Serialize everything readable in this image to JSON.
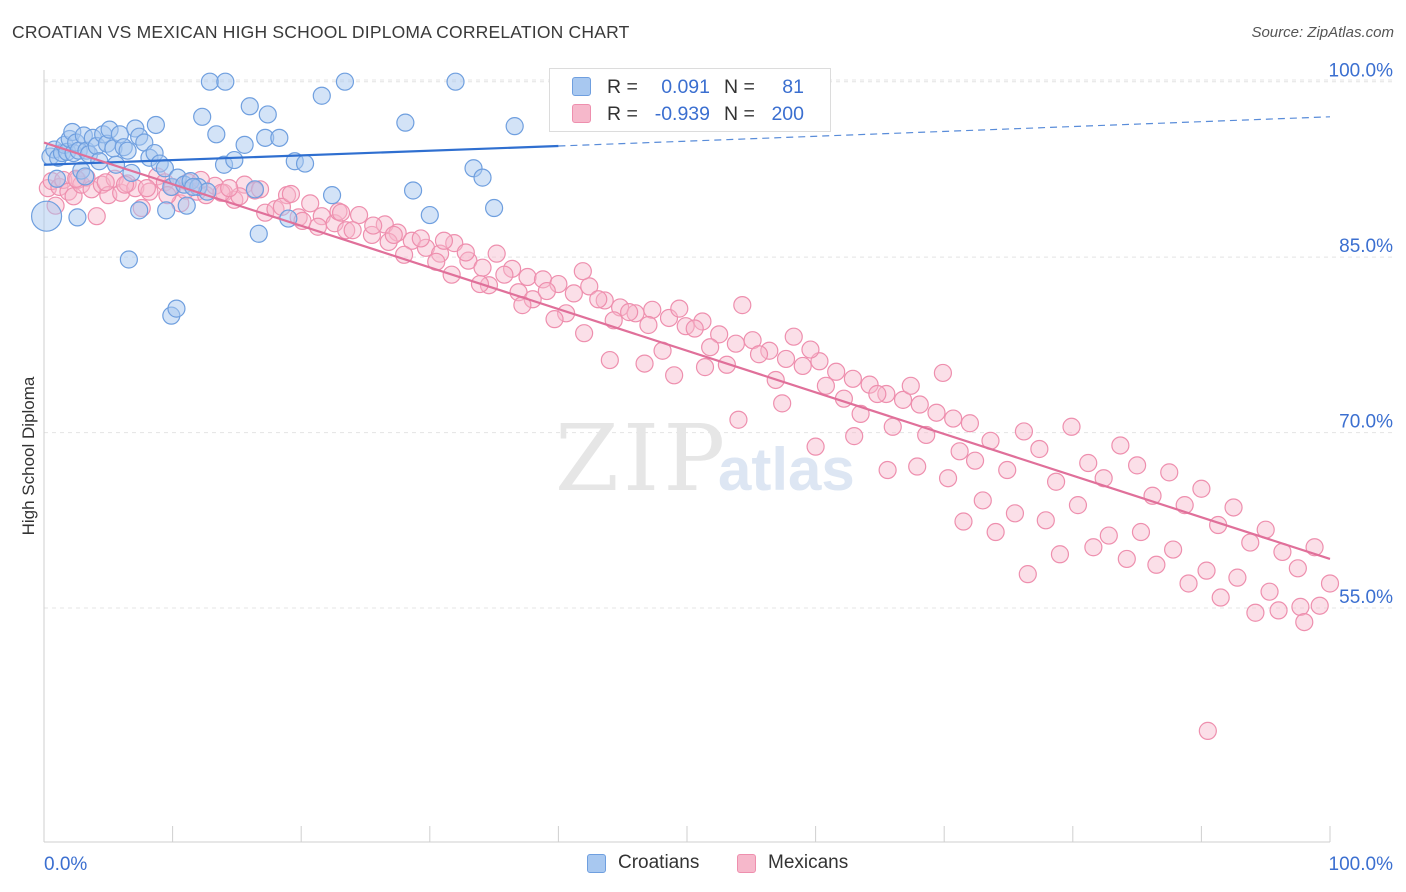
{
  "header": {
    "title": "CROATIAN VS MEXICAN HIGH SCHOOL DIPLOMA CORRELATION CHART",
    "source": "Source: ZipAtlas.com"
  },
  "watermark": {
    "zip": "ZIP",
    "atlas": "atlas"
  },
  "legend": {
    "croatians": {
      "r_label": "R =",
      "r_value": "0.091",
      "n_label": "N =",
      "n_value": "81"
    },
    "mexicans": {
      "r_label": "R =",
      "r_value": "-0.939",
      "n_label": "N =",
      "n_value": "200"
    }
  },
  "bottom_legend": {
    "croatians": "Croatians",
    "mexicans": "Mexicans"
  },
  "colors": {
    "croatians_fill": "#a8c8f0",
    "croatians_stroke": "#6f9fdf",
    "croatians_line": "#2f6fd0",
    "mexicans_fill": "#f6b8cb",
    "mexicans_stroke": "#ee8fae",
    "mexicans_line": "#e0709a",
    "axis_label": "#3b6fd0",
    "grid": "#e4e4e4"
  },
  "chart_data": {
    "type": "scatter",
    "title": "CROATIAN VS MEXICAN HIGH SCHOOL DIPLOMA CORRELATION CHART",
    "xlabel": "",
    "ylabel": "High School Diploma",
    "xlim": [
      0,
      100
    ],
    "ylim": [
      35,
      101
    ],
    "x_tick_labels": [
      "0.0%",
      "100.0%"
    ],
    "y_ticks": [
      55,
      70,
      85,
      100
    ],
    "y_tick_labels": [
      "55.0%",
      "70.0%",
      "85.0%",
      "100.0%"
    ],
    "grid": true,
    "legend_position": "top-center",
    "series": [
      {
        "name": "Croatians",
        "r": 0.091,
        "n": 81,
        "trend": {
          "x": [
            0,
            40,
            100
          ],
          "y": [
            92.9,
            94.5,
            97.0
          ],
          "solid_until": 40
        },
        "points": [
          [
            0.2,
            88.5,
            1.5
          ],
          [
            0.5,
            93.6,
            1
          ],
          [
            0.8,
            94.2,
            1
          ],
          [
            1.1,
            93.5,
            1
          ],
          [
            1.4,
            93.9,
            1
          ],
          [
            1.6,
            94.6,
            1
          ],
          [
            1.8,
            94.0,
            1
          ],
          [
            2.0,
            95.1,
            1
          ],
          [
            2.2,
            95.7,
            1
          ],
          [
            2.3,
            93.9,
            1
          ],
          [
            2.5,
            94.8,
            1
          ],
          [
            2.7,
            94.1,
            1
          ],
          [
            2.9,
            92.4,
            1
          ],
          [
            3.1,
            95.4,
            1
          ],
          [
            3.3,
            94.1,
            1
          ],
          [
            3.5,
            93.8,
            1
          ],
          [
            3.8,
            95.2,
            1
          ],
          [
            4.1,
            94.5,
            1
          ],
          [
            4.3,
            93.2,
            1
          ],
          [
            4.6,
            95.5,
            1
          ],
          [
            4.9,
            94.7,
            1
          ],
          [
            5.1,
            95.9,
            1
          ],
          [
            5.4,
            94.3,
            1
          ],
          [
            5.6,
            92.9,
            1
          ],
          [
            5.9,
            95.5,
            1
          ],
          [
            6.2,
            94.4,
            1
          ],
          [
            6.5,
            94.1,
            1
          ],
          [
            6.8,
            92.2,
            1
          ],
          [
            7.1,
            96.0,
            1
          ],
          [
            7.4,
            95.3,
            1
          ],
          [
            7.8,
            94.8,
            1
          ],
          [
            8.2,
            93.5,
            1
          ],
          [
            8.6,
            93.9,
            1
          ],
          [
            9.0,
            93.0,
            1
          ],
          [
            9.4,
            92.6,
            1
          ],
          [
            9.9,
            91.0,
            1
          ],
          [
            10.4,
            91.8,
            1
          ],
          [
            10.9,
            91.2,
            1
          ],
          [
            11.4,
            91.5,
            1
          ],
          [
            12.0,
            91.0,
            1
          ],
          [
            12.7,
            90.6,
            1
          ],
          [
            13.4,
            95.5,
            1
          ],
          [
            14.0,
            92.9,
            1
          ],
          [
            14.8,
            93.3,
            1
          ],
          [
            15.6,
            94.6,
            1
          ],
          [
            16.4,
            90.8,
            1
          ],
          [
            17.2,
            95.2,
            1
          ],
          [
            1.0,
            91.7,
            1
          ],
          [
            2.6,
            88.4,
            1
          ],
          [
            3.2,
            91.9,
            1
          ],
          [
            6.6,
            84.8,
            1
          ],
          [
            7.4,
            89.0,
            1
          ],
          [
            8.7,
            96.3,
            1
          ],
          [
            9.5,
            89.0,
            1
          ],
          [
            9.9,
            80.0,
            1
          ],
          [
            10.3,
            80.6,
            1
          ],
          [
            11.1,
            89.4,
            1
          ],
          [
            11.6,
            91.0,
            1
          ],
          [
            12.3,
            97.0,
            1
          ],
          [
            12.9,
            100.0,
            1
          ],
          [
            14.1,
            100.0,
            1
          ],
          [
            16.0,
            97.9,
            1
          ],
          [
            16.7,
            87.0,
            1
          ],
          [
            17.4,
            97.2,
            1
          ],
          [
            18.3,
            95.2,
            1
          ],
          [
            19.0,
            88.3,
            1
          ],
          [
            19.5,
            93.2,
            1
          ],
          [
            20.3,
            93.0,
            1
          ],
          [
            21.6,
            98.8,
            1
          ],
          [
            22.4,
            90.3,
            1
          ],
          [
            23.4,
            100.0,
            1
          ],
          [
            28.1,
            96.5,
            1
          ],
          [
            28.7,
            90.7,
            1
          ],
          [
            30.0,
            88.6,
            1
          ],
          [
            32.0,
            100.0,
            1
          ],
          [
            33.4,
            92.6,
            1
          ],
          [
            34.1,
            91.8,
            1
          ],
          [
            35.0,
            89.2,
            1
          ],
          [
            36.6,
            96.2,
            1
          ],
          [
            44.5,
            97.0,
            1
          ],
          [
            45.8,
            100.0,
            1
          ]
        ]
      },
      {
        "name": "Mexicans",
        "r": -0.939,
        "n": 200,
        "trend": {
          "x": [
            0,
            100
          ],
          "y": [
            94.8,
            59.2
          ]
        },
        "points": [
          [
            0.3,
            90.9
          ],
          [
            0.6,
            91.5
          ],
          [
            0.9,
            89.4
          ],
          [
            1.2,
            91.0
          ],
          [
            1.5,
            91.6
          ],
          [
            1.9,
            90.6
          ],
          [
            2.3,
            90.2
          ],
          [
            2.6,
            91.6
          ],
          [
            2.9,
            91.2
          ],
          [
            3.3,
            91.8
          ],
          [
            3.7,
            90.8
          ],
          [
            4.1,
            88.5
          ],
          [
            4.5,
            91.2
          ],
          [
            5.0,
            90.3
          ],
          [
            5.5,
            91.7
          ],
          [
            6.0,
            90.5
          ],
          [
            6.5,
            91.3
          ],
          [
            7.1,
            90.9
          ],
          [
            7.6,
            89.2
          ],
          [
            8.2,
            90.6
          ],
          [
            8.8,
            91.9
          ],
          [
            9.4,
            91.4
          ],
          [
            10.0,
            91.0
          ],
          [
            10.6,
            89.6
          ],
          [
            11.2,
            91.4
          ],
          [
            11.9,
            90.6
          ],
          [
            12.6,
            90.3
          ],
          [
            13.3,
            91.1
          ],
          [
            14.0,
            90.5
          ],
          [
            14.8,
            89.9
          ],
          [
            15.6,
            91.2
          ],
          [
            16.4,
            90.7
          ],
          [
            17.2,
            88.8
          ],
          [
            18.0,
            89.1
          ],
          [
            18.9,
            90.3
          ],
          [
            19.8,
            88.4
          ],
          [
            20.7,
            89.6
          ],
          [
            21.6,
            88.5
          ],
          [
            22.6,
            87.9
          ],
          [
            23.5,
            87.3
          ],
          [
            24.5,
            88.6
          ],
          [
            25.5,
            86.9
          ],
          [
            26.5,
            87.8
          ],
          [
            27.5,
            87.1
          ],
          [
            28.6,
            86.4
          ],
          [
            29.7,
            85.8
          ],
          [
            30.8,
            85.3
          ],
          [
            31.9,
            86.2
          ],
          [
            33.0,
            84.7
          ],
          [
            34.1,
            84.1
          ],
          [
            35.2,
            85.3
          ],
          [
            36.4,
            84.0
          ],
          [
            37.6,
            83.3
          ],
          [
            38.8,
            83.1
          ],
          [
            40.0,
            82.7
          ],
          [
            41.2,
            81.9
          ],
          [
            42.4,
            82.5
          ],
          [
            43.6,
            81.3
          ],
          [
            44.8,
            80.7
          ],
          [
            46.0,
            80.2
          ],
          [
            47.3,
            80.5
          ],
          [
            48.6,
            79.8
          ],
          [
            49.9,
            79.1
          ],
          [
            51.2,
            79.5
          ],
          [
            52.5,
            78.4
          ],
          [
            53.8,
            77.6
          ],
          [
            55.1,
            77.9
          ],
          [
            56.4,
            77.0
          ],
          [
            57.7,
            76.3
          ],
          [
            59.0,
            75.7
          ],
          [
            60.3,
            76.1
          ],
          [
            61.6,
            75.2
          ],
          [
            62.9,
            74.6
          ],
          [
            64.2,
            74.1
          ],
          [
            65.5,
            73.3
          ],
          [
            66.8,
            72.8
          ],
          [
            68.1,
            72.4
          ],
          [
            69.4,
            71.7
          ],
          [
            70.7,
            71.2
          ],
          [
            72.0,
            70.8
          ],
          [
            2.5,
            91.7
          ],
          [
            4.8,
            91.4
          ],
          [
            6.3,
            91.2
          ],
          [
            8.0,
            90.9
          ],
          [
            9.6,
            90.3
          ],
          [
            11.0,
            90.7
          ],
          [
            12.2,
            91.6
          ],
          [
            13.8,
            90.5
          ],
          [
            15.2,
            90.2
          ],
          [
            16.8,
            90.8
          ],
          [
            18.5,
            89.3
          ],
          [
            20.1,
            88.1
          ],
          [
            21.3,
            87.6
          ],
          [
            22.9,
            88.9
          ],
          [
            24.0,
            87.3
          ],
          [
            25.6,
            87.7
          ],
          [
            26.8,
            86.3
          ],
          [
            28.0,
            85.2
          ],
          [
            29.3,
            86.6
          ],
          [
            30.5,
            84.6
          ],
          [
            31.7,
            83.5
          ],
          [
            32.8,
            85.4
          ],
          [
            34.6,
            82.6
          ],
          [
            35.8,
            83.5
          ],
          [
            36.9,
            82.0
          ],
          [
            38.0,
            81.4
          ],
          [
            39.1,
            82.1
          ],
          [
            40.6,
            80.2
          ],
          [
            41.9,
            83.8
          ],
          [
            43.1,
            81.4
          ],
          [
            44.3,
            79.6
          ],
          [
            45.5,
            80.3
          ],
          [
            47.0,
            79.2
          ],
          [
            48.1,
            77.0
          ],
          [
            49.4,
            80.6
          ],
          [
            50.6,
            78.9
          ],
          [
            51.8,
            77.3
          ],
          [
            53.1,
            75.8
          ],
          [
            54.3,
            80.9
          ],
          [
            55.6,
            76.7
          ],
          [
            56.9,
            74.5
          ],
          [
            58.3,
            78.2
          ],
          [
            59.6,
            77.1
          ],
          [
            60.8,
            74.0
          ],
          [
            62.2,
            72.9
          ],
          [
            63.5,
            71.6
          ],
          [
            64.8,
            73.3
          ],
          [
            66.0,
            70.5
          ],
          [
            67.4,
            74.0
          ],
          [
            68.6,
            69.8
          ],
          [
            69.9,
            75.1
          ],
          [
            71.2,
            68.4
          ],
          [
            72.4,
            67.6
          ],
          [
            73.6,
            69.3
          ],
          [
            74.9,
            66.8
          ],
          [
            76.2,
            70.1
          ],
          [
            77.4,
            68.6
          ],
          [
            78.7,
            65.8
          ],
          [
            79.9,
            70.5
          ],
          [
            81.2,
            67.4
          ],
          [
            82.4,
            66.1
          ],
          [
            83.7,
            68.9
          ],
          [
            85.0,
            67.2
          ],
          [
            86.2,
            64.6
          ],
          [
            87.5,
            66.6
          ],
          [
            88.7,
            63.8
          ],
          [
            90.0,
            65.2
          ],
          [
            91.3,
            62.1
          ],
          [
            92.5,
            63.6
          ],
          [
            93.8,
            60.6
          ],
          [
            95.0,
            61.7
          ],
          [
            96.3,
            59.8
          ],
          [
            97.5,
            58.4
          ],
          [
            98.8,
            60.2
          ],
          [
            100.0,
            57.1
          ],
          [
            14.4,
            90.9
          ],
          [
            19.2,
            90.4
          ],
          [
            23.1,
            88.8
          ],
          [
            27.2,
            86.9
          ],
          [
            31.1,
            86.4
          ],
          [
            33.9,
            82.7
          ],
          [
            37.2,
            80.9
          ],
          [
            39.7,
            79.7
          ],
          [
            42.0,
            78.5
          ],
          [
            44.0,
            76.2
          ],
          [
            46.7,
            75.9
          ],
          [
            49.0,
            74.9
          ],
          [
            51.4,
            75.6
          ],
          [
            54.0,
            71.1
          ],
          [
            57.4,
            72.5
          ],
          [
            60.0,
            68.8
          ],
          [
            63.0,
            69.7
          ],
          [
            65.6,
            66.8
          ],
          [
            67.9,
            67.1
          ],
          [
            70.3,
            66.1
          ],
          [
            73.0,
            64.2
          ],
          [
            75.5,
            63.1
          ],
          [
            77.9,
            62.5
          ],
          [
            80.4,
            63.8
          ],
          [
            82.8,
            61.2
          ],
          [
            85.3,
            61.5
          ],
          [
            87.8,
            60.0
          ],
          [
            90.4,
            58.2
          ],
          [
            92.8,
            57.6
          ],
          [
            95.3,
            56.4
          ],
          [
            97.7,
            55.1
          ],
          [
            99.2,
            55.2
          ],
          [
            98.0,
            53.8
          ],
          [
            96.0,
            54.8
          ],
          [
            94.2,
            54.6
          ],
          [
            91.5,
            55.9
          ],
          [
            89.0,
            57.1
          ],
          [
            86.5,
            58.7
          ],
          [
            84.2,
            59.2
          ],
          [
            81.6,
            60.2
          ],
          [
            79.0,
            59.6
          ],
          [
            76.5,
            57.9
          ],
          [
            74.0,
            61.5
          ],
          [
            71.5,
            62.4
          ],
          [
            90.5,
            44.5
          ]
        ]
      }
    ]
  }
}
